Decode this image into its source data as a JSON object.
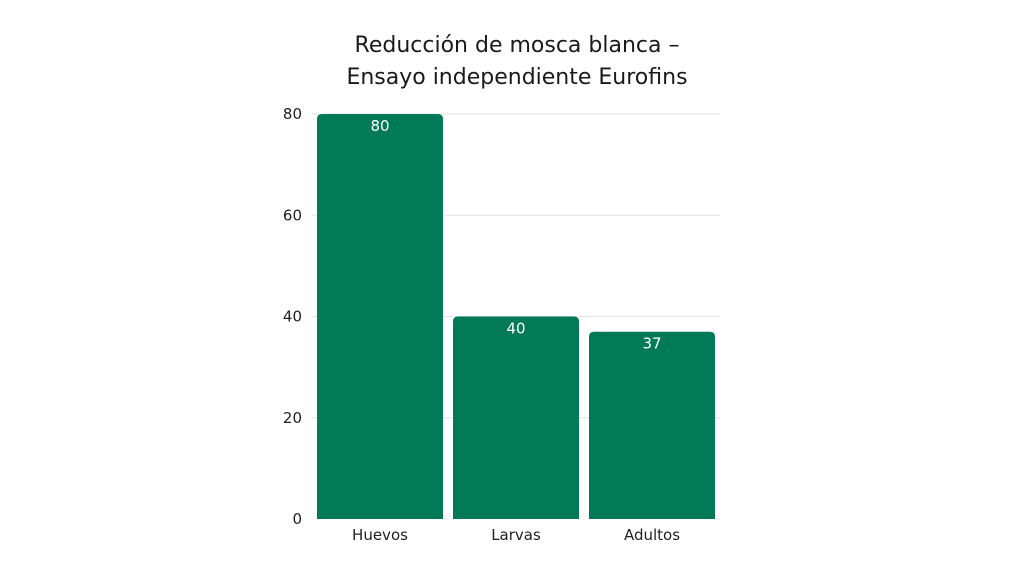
{
  "chart_data": {
    "type": "bar",
    "title_lines": [
      "Reducción de mosca blanca –",
      "Ensayo independiente Eurofins"
    ],
    "categories": [
      "Huevos",
      "Larvas",
      "Adultos"
    ],
    "values": [
      80,
      40,
      37
    ],
    "ylim": [
      0,
      80
    ],
    "yticks": [
      0,
      20,
      40,
      60,
      80
    ],
    "grid": true,
    "bar_color": "#027a56",
    "data_labels": [
      "80",
      "40",
      "37"
    ]
  }
}
